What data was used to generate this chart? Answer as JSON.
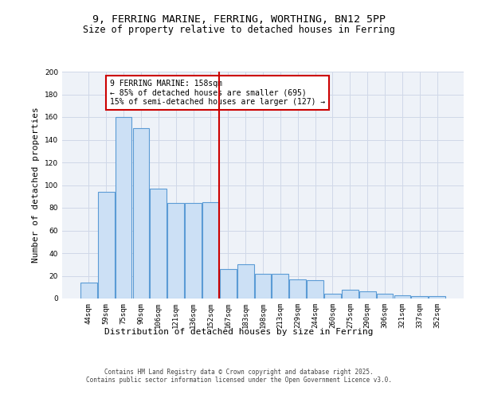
{
  "title1": "9, FERRING MARINE, FERRING, WORTHING, BN12 5PP",
  "title2": "Size of property relative to detached houses in Ferring",
  "xlabel": "Distribution of detached houses by size in Ferring",
  "ylabel": "Number of detached properties",
  "categories": [
    "44sqm",
    "59sqm",
    "75sqm",
    "90sqm",
    "106sqm",
    "121sqm",
    "136sqm",
    "152sqm",
    "167sqm",
    "183sqm",
    "198sqm",
    "213sqm",
    "229sqm",
    "244sqm",
    "260sqm",
    "275sqm",
    "290sqm",
    "306sqm",
    "321sqm",
    "337sqm",
    "352sqm"
  ],
  "values": [
    14,
    94,
    160,
    150,
    97,
    84,
    84,
    85,
    26,
    30,
    22,
    22,
    17,
    16,
    4,
    8,
    6,
    4,
    3,
    2,
    2
  ],
  "bar_color": "#cce0f5",
  "bar_edge_color": "#5b9bd5",
  "bar_edge_width": 0.8,
  "red_line_x": 7.5,
  "annotation_text": "9 FERRING MARINE: 158sqm\n← 85% of detached houses are smaller (695)\n15% of semi-detached houses are larger (127) →",
  "annotation_box_color": "#ffffff",
  "annotation_box_edge": "#cc0000",
  "ylim": [
    0,
    200
  ],
  "yticks": [
    0,
    20,
    40,
    60,
    80,
    100,
    120,
    140,
    160,
    180,
    200
  ],
  "grid_color": "#d0d8e8",
  "background_color": "#eef2f8",
  "footer": "Contains HM Land Registry data © Crown copyright and database right 2025.\nContains public sector information licensed under the Open Government Licence v3.0.",
  "red_line_color": "#cc0000",
  "title_fontsize": 9.5,
  "subtitle_fontsize": 8.5,
  "tick_fontsize": 6.5,
  "label_fontsize": 8,
  "footer_fontsize": 5.5
}
